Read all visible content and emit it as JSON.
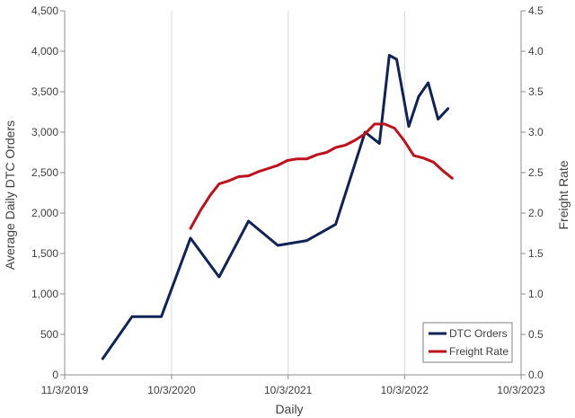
{
  "chart_data": {
    "type": "line",
    "xlabel": "Daily",
    "ylabel": "Average Daily DTC Orders",
    "y2label": "Freight Rate",
    "x_range": [
      "2019-11-03",
      "2023-10-03"
    ],
    "x_tick_labels": [
      "11/3/2019",
      "10/3/2020",
      "10/3/2021",
      "10/3/2022",
      "10/3/2023"
    ],
    "x_tick_dates": [
      "2019-11-03",
      "2020-10-03",
      "2021-10-03",
      "2022-10-03",
      "2023-10-03"
    ],
    "ylim": [
      0,
      4500
    ],
    "y_ticks": [
      0,
      500,
      1000,
      1500,
      2000,
      2500,
      3000,
      3500,
      4000,
      4500
    ],
    "y_tick_labels": [
      "0",
      "500",
      "1,000",
      "1,500",
      "2,000",
      "2,500",
      "3,000",
      "3,500",
      "4,000",
      "4,500"
    ],
    "y2lim": [
      0,
      4.5
    ],
    "y2_ticks": [
      0,
      0.5,
      1,
      1.5,
      2,
      2.5,
      3,
      3.5,
      4,
      4.5
    ],
    "y2_tick_labels": [
      "0.0",
      "0.5",
      "1.0",
      "1.5",
      "2.0",
      "2.5",
      "3.0",
      "3.5",
      "4.0",
      "4.5"
    ],
    "grid": "vertical",
    "legend_position": "bottom-right",
    "series": [
      {
        "name": "DTC Orders",
        "axis": "left",
        "color": "#0f2356",
        "points": [
          [
            "2020-03-01",
            200
          ],
          [
            "2020-06-01",
            720
          ],
          [
            "2020-09-01",
            720
          ],
          [
            "2020-12-01",
            1690
          ],
          [
            "2021-03-01",
            1210
          ],
          [
            "2021-06-01",
            1900
          ],
          [
            "2021-09-01",
            1600
          ],
          [
            "2021-12-01",
            1660
          ],
          [
            "2022-03-01",
            1860
          ],
          [
            "2022-06-01",
            3000
          ],
          [
            "2022-07-16",
            2860
          ],
          [
            "2022-08-16",
            3950
          ],
          [
            "2022-09-08",
            3900
          ],
          [
            "2022-10-16",
            3070
          ],
          [
            "2022-11-16",
            3440
          ],
          [
            "2022-12-16",
            3610
          ],
          [
            "2023-01-16",
            3160
          ],
          [
            "2023-02-16",
            3290
          ]
        ]
      },
      {
        "name": "Freight Rate",
        "axis": "right",
        "color": "#c0101c",
        "points": [
          [
            "2020-12-01",
            1.81
          ],
          [
            "2021-01-01",
            2.03
          ],
          [
            "2021-02-01",
            2.22
          ],
          [
            "2021-03-01",
            2.36
          ],
          [
            "2021-04-01",
            2.4
          ],
          [
            "2021-05-01",
            2.45
          ],
          [
            "2021-06-01",
            2.46
          ],
          [
            "2021-07-01",
            2.51
          ],
          [
            "2021-08-01",
            2.55
          ],
          [
            "2021-09-01",
            2.59
          ],
          [
            "2021-10-01",
            2.65
          ],
          [
            "2021-11-01",
            2.67
          ],
          [
            "2021-12-01",
            2.67
          ],
          [
            "2022-01-01",
            2.72
          ],
          [
            "2022-02-01",
            2.75
          ],
          [
            "2022-03-01",
            2.81
          ],
          [
            "2022-04-01",
            2.84
          ],
          [
            "2022-05-01",
            2.9
          ],
          [
            "2022-06-01",
            2.98
          ],
          [
            "2022-07-01",
            3.1
          ],
          [
            "2022-08-01",
            3.1
          ],
          [
            "2022-09-01",
            3.05
          ],
          [
            "2022-10-01",
            2.9
          ],
          [
            "2022-11-01",
            2.71
          ],
          [
            "2022-12-01",
            2.68
          ],
          [
            "2023-01-01",
            2.63
          ],
          [
            "2023-02-01",
            2.52
          ],
          [
            "2023-03-01",
            2.43
          ]
        ]
      }
    ]
  }
}
